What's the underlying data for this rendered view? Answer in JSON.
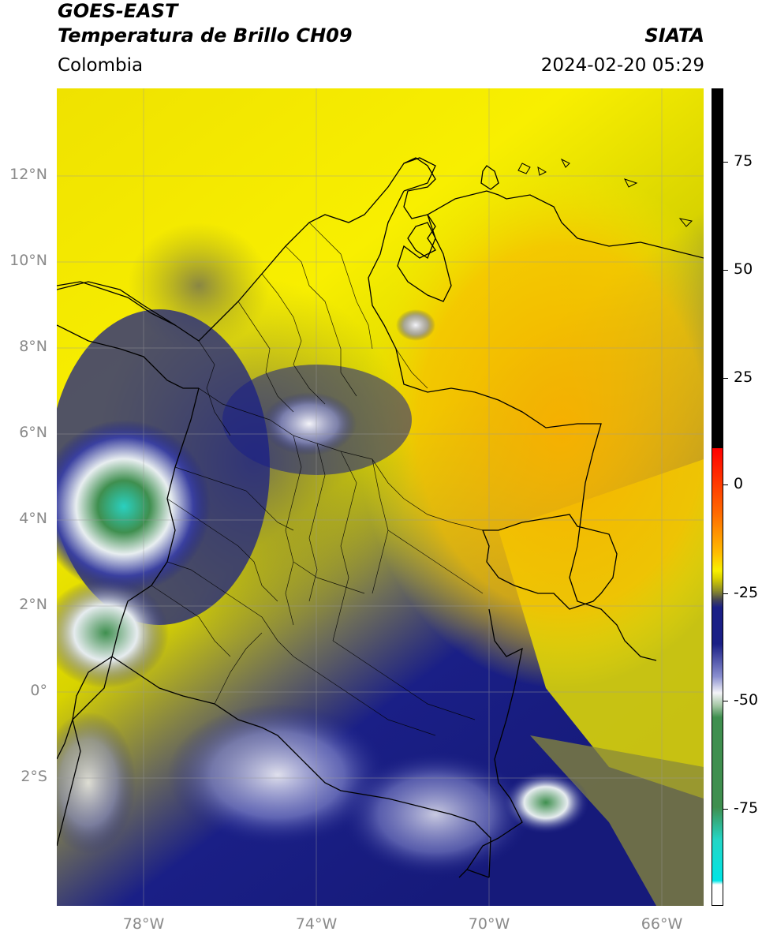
{
  "header": {
    "satellite": "GOES-EAST",
    "product": "Temperatura de Brillo CH09",
    "brand": "SIATA",
    "region": "Colombia",
    "datetime": "2024-02-20 05:29"
  },
  "map": {
    "lat_labels": [
      "12°N",
      "10°N",
      "8°N",
      "6°N",
      "4°N",
      "2°N",
      "0°",
      "2°S"
    ],
    "lon_labels": [
      "78°W",
      "74°W",
      "70°W",
      "66°W"
    ],
    "palette": {
      "warm_orange": "#f7b400",
      "yellow": "#f8f000",
      "olive": "#8a8a2a",
      "gray": "#6b6b5a",
      "navy": "#1a1f86",
      "white": "#f4f4f8",
      "green": "#3f8f4f",
      "cyan": "#25d6c6",
      "red": "#ff2a00"
    }
  },
  "colorbar": {
    "labels": [
      "75",
      "50",
      "25",
      "0",
      "-25",
      "-50",
      "-75"
    ]
  }
}
